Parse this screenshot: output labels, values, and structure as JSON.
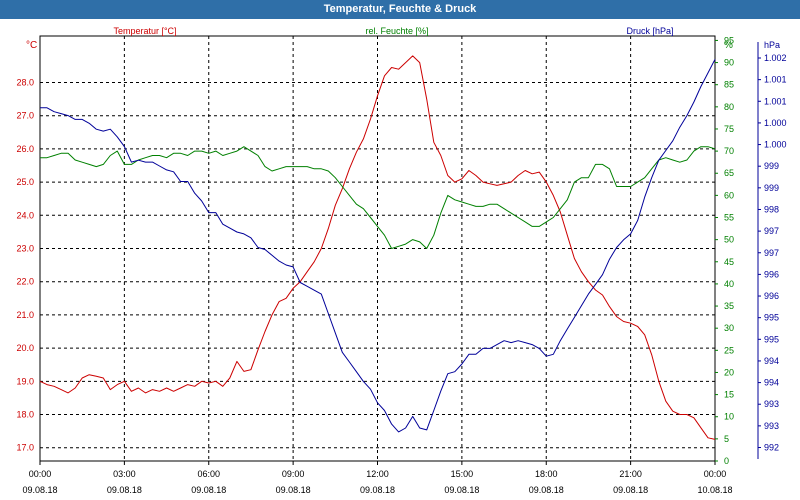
{
  "window": {
    "title": "Temperatur, Feuchte & Druck"
  },
  "colors": {
    "temperature": "#cc0000",
    "humidity": "#008000",
    "pressure": "#000099",
    "title_bar": "#2f6fa8",
    "grid": "#000000"
  },
  "chart_data": {
    "type": "line",
    "title": "Temperatur, Feuchte & Druck",
    "grid": true,
    "x": {
      "ticks": [
        {
          "time": "00:00",
          "date": "09.08.18"
        },
        {
          "time": "03:00",
          "date": "09.08.18"
        },
        {
          "time": "06:00",
          "date": "09.08.18"
        },
        {
          "time": "09:00",
          "date": "09.08.18"
        },
        {
          "time": "12:00",
          "date": "09.08.18"
        },
        {
          "time": "15:00",
          "date": "09.08.18"
        },
        {
          "time": "18:00",
          "date": "09.08.18"
        },
        {
          "time": "21:00",
          "date": "09.08.18"
        },
        {
          "time": "00:00",
          "date": "10.08.18"
        }
      ],
      "range_hours": [
        0,
        24
      ]
    },
    "axes": {
      "temperature": {
        "unit": "°C",
        "label": "Temperatur [°C]",
        "range": [
          16.6,
          29.4
        ],
        "ticks": [
          "17.0",
          "18.0",
          "19.0",
          "20.0",
          "21.0",
          "22.0",
          "23.0",
          "24.0",
          "25.0",
          "26.0",
          "27.0",
          "28.0"
        ]
      },
      "humidity": {
        "unit": "%",
        "label": "rel. Feuchte [%]",
        "range": [
          0,
          96
        ],
        "ticks": [
          "0",
          "5",
          "10",
          "15",
          "20",
          "25",
          "30",
          "35",
          "40",
          "45",
          "50",
          "55",
          "60",
          "65",
          "70",
          "75",
          "80",
          "85",
          "90",
          "95"
        ]
      },
      "pressure": {
        "unit": "hPa",
        "label": "Druck [hPa]",
        "ticks": [
          "992",
          "993",
          "993",
          "994",
          "994",
          "995",
          "995",
          "996",
          "996",
          "997",
          "997",
          "998",
          "999",
          "999",
          "1.000",
          "1.000",
          "1.001",
          "1.001",
          "1.002"
        ]
      }
    },
    "series": [
      {
        "name": "Temperatur [°C]",
        "axis": "temperature",
        "x": [
          0,
          0.25,
          0.5,
          0.75,
          1,
          1.25,
          1.5,
          1.75,
          2,
          2.25,
          2.5,
          2.75,
          3,
          3.25,
          3.5,
          3.75,
          4,
          4.25,
          4.5,
          4.75,
          5,
          5.25,
          5.5,
          5.75,
          6,
          6.25,
          6.5,
          6.75,
          7,
          7.25,
          7.5,
          7.75,
          8,
          8.25,
          8.5,
          8.75,
          9,
          9.25,
          9.5,
          9.75,
          10,
          10.25,
          10.5,
          10.75,
          11,
          11.25,
          11.5,
          11.75,
          12,
          12.25,
          12.5,
          12.75,
          13,
          13.25,
          13.5,
          13.75,
          14,
          14.25,
          14.5,
          14.75,
          15,
          15.25,
          15.5,
          15.75,
          16,
          16.25,
          16.5,
          16.75,
          17,
          17.25,
          17.5,
          17.75,
          18,
          18.25,
          18.5,
          18.75,
          19,
          19.25,
          19.5,
          19.75,
          20,
          20.25,
          20.5,
          20.75,
          21,
          21.25,
          21.5,
          21.75,
          22,
          22.25,
          22.5,
          22.75,
          23,
          23.25,
          23.5,
          23.75,
          24
        ],
        "values": [
          19.0,
          18.9,
          18.85,
          18.75,
          18.65,
          18.8,
          19.1,
          19.2,
          19.15,
          19.1,
          18.75,
          18.9,
          19.0,
          18.7,
          18.8,
          18.65,
          18.75,
          18.7,
          18.8,
          18.7,
          18.8,
          18.9,
          18.85,
          19.0,
          18.95,
          19.0,
          18.85,
          19.1,
          19.6,
          19.3,
          19.35,
          19.95,
          20.5,
          21.0,
          21.4,
          21.5,
          21.8,
          22.0,
          22.3,
          22.6,
          23.0,
          23.6,
          24.3,
          24.8,
          25.4,
          25.9,
          26.3,
          26.9,
          27.6,
          28.2,
          28.45,
          28.4,
          28.6,
          28.8,
          28.6,
          27.5,
          26.2,
          25.8,
          25.2,
          25.0,
          25.1,
          25.35,
          25.2,
          25.0,
          24.95,
          24.9,
          24.95,
          25.0,
          25.2,
          25.35,
          25.25,
          25.3,
          25.0,
          24.6,
          24.1,
          23.4,
          22.7,
          22.3,
          22.0,
          21.75,
          21.6,
          21.25,
          20.95,
          20.8,
          20.75,
          20.65,
          20.4,
          19.8,
          19.0,
          18.4,
          18.1,
          18.0,
          18.0,
          17.9,
          17.6,
          17.3,
          17.25
        ]
      },
      {
        "name": "rel. Feuchte [%]",
        "axis": "humidity",
        "x": [
          0,
          0.25,
          0.5,
          0.75,
          1,
          1.25,
          1.5,
          1.75,
          2,
          2.25,
          2.5,
          2.75,
          3,
          3.25,
          3.5,
          3.75,
          4,
          4.25,
          4.5,
          4.75,
          5,
          5.25,
          5.5,
          5.75,
          6,
          6.25,
          6.5,
          6.75,
          7,
          7.25,
          7.5,
          7.75,
          8,
          8.25,
          8.5,
          8.75,
          9,
          9.25,
          9.5,
          9.75,
          10,
          10.25,
          10.5,
          10.75,
          11,
          11.25,
          11.5,
          11.75,
          12,
          12.25,
          12.5,
          12.75,
          13,
          13.25,
          13.5,
          13.75,
          14,
          14.25,
          14.5,
          14.75,
          15,
          15.25,
          15.5,
          15.75,
          16,
          16.25,
          16.5,
          16.75,
          17,
          17.25,
          17.5,
          17.75,
          18,
          18.25,
          18.5,
          18.75,
          19,
          19.25,
          19.5,
          19.75,
          20,
          20.25,
          20.5,
          20.75,
          21,
          21.25,
          21.5,
          21.75,
          22,
          22.25,
          22.5,
          22.75,
          23,
          23.25,
          23.5,
          23.75,
          24
        ],
        "values": [
          68.5,
          68.5,
          69,
          69.5,
          69.5,
          68,
          67.5,
          67,
          66.5,
          67,
          69,
          70,
          67,
          67,
          68,
          68.5,
          69,
          69,
          68.5,
          69.5,
          69.5,
          69,
          70,
          70,
          69.5,
          70,
          69,
          69.5,
          70,
          71,
          70,
          69,
          66.5,
          65.5,
          66,
          66.5,
          66.5,
          66.5,
          66.5,
          66,
          66,
          65.5,
          64,
          62,
          60,
          58,
          57,
          55,
          53,
          51,
          48,
          48.5,
          49,
          50,
          49.5,
          48,
          51,
          56,
          60,
          59,
          58.5,
          58,
          57.5,
          57.5,
          58,
          58,
          57,
          56,
          55,
          54,
          53,
          53,
          54,
          55,
          57,
          59,
          63,
          64,
          64,
          67,
          67,
          66,
          62,
          62,
          62,
          63,
          64,
          66,
          68,
          68.5,
          68,
          67.5,
          68,
          70,
          71,
          71,
          70.5
        ]
      },
      {
        "name": "Druck [hPa]",
        "axis": "pressure",
        "x": [
          0,
          0.25,
          0.5,
          0.75,
          1,
          1.25,
          1.5,
          1.75,
          2,
          2.25,
          2.5,
          2.75,
          3,
          3.25,
          3.5,
          3.75,
          4,
          4.25,
          4.5,
          4.75,
          5,
          5.25,
          5.5,
          5.75,
          6,
          6.25,
          6.5,
          6.75,
          7,
          7.25,
          7.5,
          7.75,
          8,
          8.25,
          8.5,
          8.75,
          9,
          9.25,
          9.5,
          9.75,
          10,
          10.25,
          10.5,
          10.75,
          11,
          11.25,
          11.5,
          11.75,
          12,
          12.25,
          12.5,
          12.75,
          13,
          13.25,
          13.5,
          13.75,
          14,
          14.25,
          14.5,
          14.75,
          15,
          15.25,
          15.5,
          15.75,
          16,
          16.25,
          16.5,
          16.75,
          17,
          17.25,
          17.5,
          17.75,
          18,
          18.25,
          18.5,
          18.75,
          19,
          19.25,
          19.5,
          19.75,
          20,
          20.25,
          20.5,
          20.75,
          21,
          21.25,
          21.5,
          21.75,
          22,
          22.25,
          22.5,
          22.75,
          23,
          23.25,
          23.5,
          23.75,
          24
        ],
        "values": [
          1000.6,
          1000.6,
          1000.5,
          1000.45,
          1000.4,
          1000.3,
          1000.3,
          1000.2,
          1000.05,
          1000.0,
          1000.05,
          999.85,
          999.6,
          999.2,
          999.25,
          999.2,
          999.2,
          999.1,
          999.0,
          998.95,
          998.7,
          998.7,
          998.4,
          998.2,
          997.9,
          997.9,
          997.6,
          997.5,
          997.4,
          997.35,
          997.25,
          997.0,
          996.95,
          996.8,
          996.65,
          996.55,
          996.5,
          996.1,
          996.0,
          995.9,
          995.8,
          995.3,
          994.8,
          994.3,
          994.05,
          993.8,
          993.55,
          993.35,
          993.0,
          992.8,
          992.45,
          992.25,
          992.35,
          992.65,
          992.35,
          992.3,
          992.8,
          993.3,
          993.75,
          993.8,
          994.0,
          994.25,
          994.25,
          994.4,
          994.4,
          994.5,
          994.6,
          994.55,
          994.6,
          994.55,
          994.5,
          994.4,
          994.2,
          994.25,
          994.6,
          994.9,
          995.2,
          995.5,
          995.8,
          996.05,
          996.3,
          996.7,
          997.0,
          997.2,
          997.35,
          997.7,
          998.3,
          998.8,
          999.25,
          999.5,
          999.75,
          1000.1,
          1000.4,
          1000.75,
          1001.15,
          1001.5,
          1001.85
        ]
      }
    ]
  }
}
